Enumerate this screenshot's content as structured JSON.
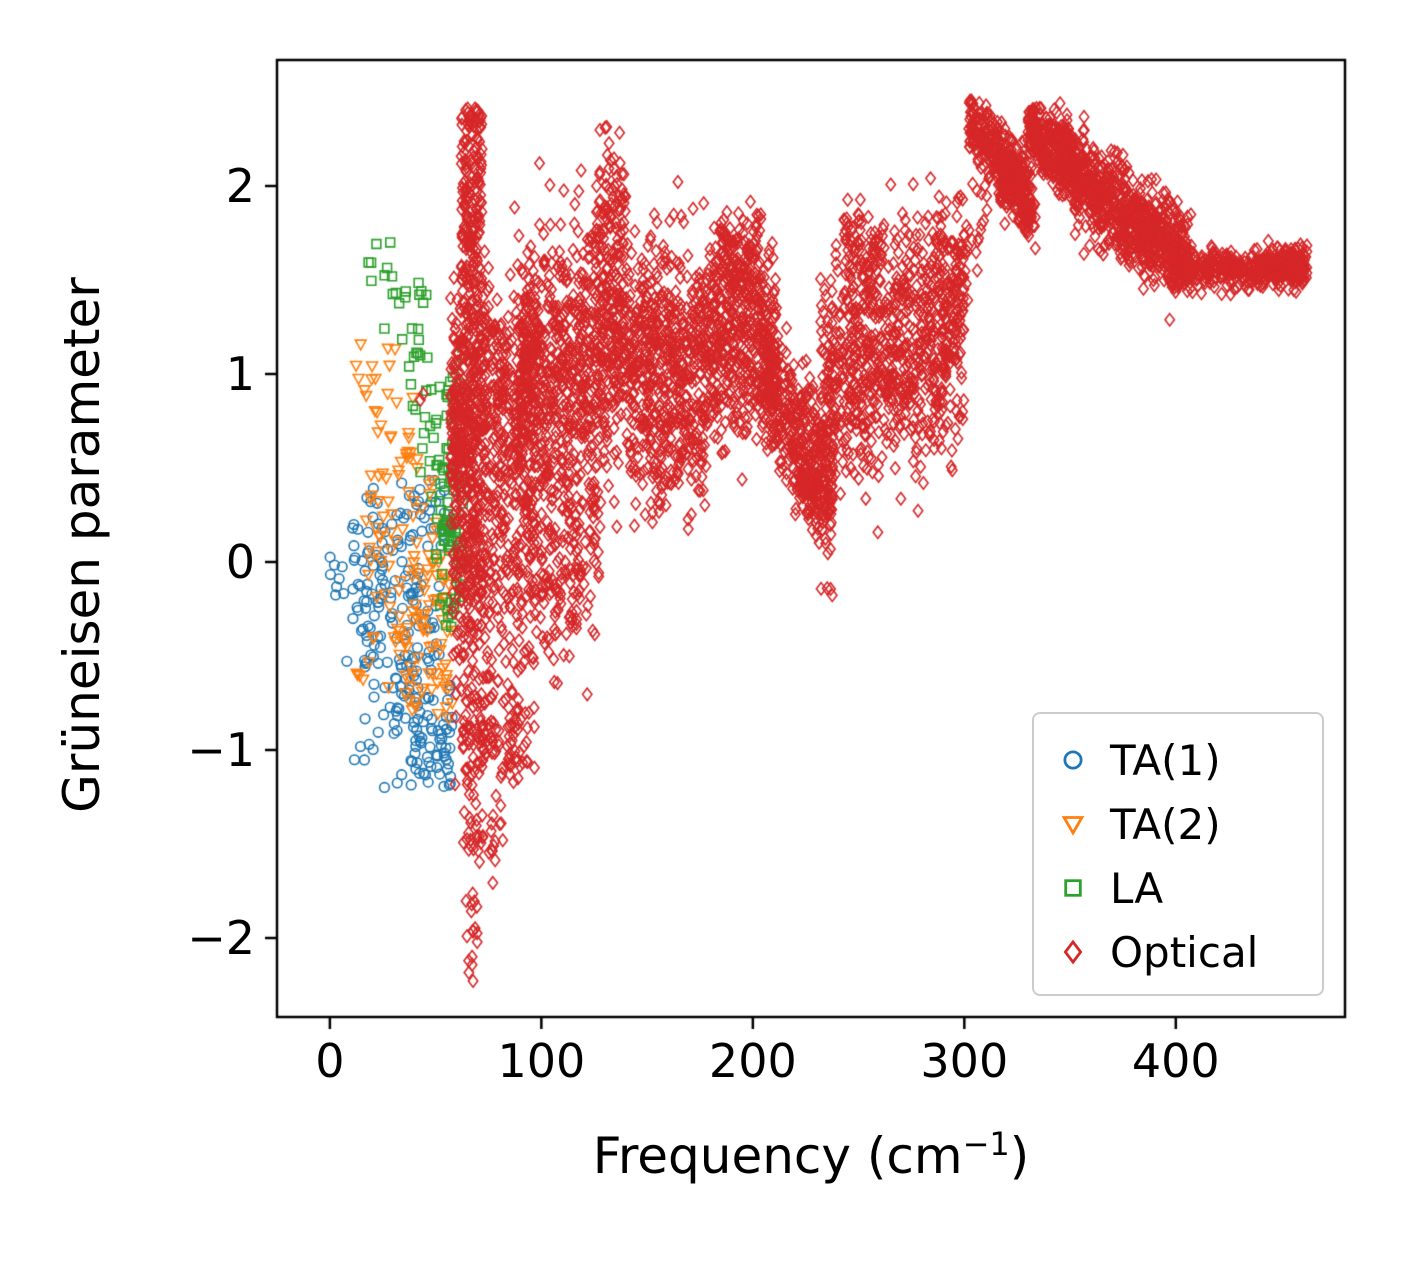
{
  "chart_data": {
    "type": "scatter",
    "title": "",
    "ylabel": "Grüneisen parameter",
    "xlabel_parts": {
      "pre": "Frequency (cm",
      "sup": "−1",
      "post": ")"
    },
    "xlim": [
      -25,
      480
    ],
    "ylim": [
      -2.42,
      2.67
    ],
    "grid": false,
    "legend_position": "lower right",
    "x_ticks": {
      "values": [
        0,
        100,
        200,
        300,
        400
      ],
      "labels": [
        "0",
        "100",
        "200",
        "300",
        "400"
      ]
    },
    "y_ticks": {
      "values": [
        -2,
        -1,
        0,
        1,
        2
      ],
      "labels": [
        "−2",
        "−1",
        "0",
        "1",
        "2"
      ]
    },
    "series": [
      {
        "name": "TA(1)",
        "marker": "circle",
        "color": "#1f77b4",
        "yclip": [
          -1.2,
          0.45
        ],
        "clusters": [
          {
            "x": [
              -2,
              12
            ],
            "y": 0.0,
            "sd": 0.1,
            "n": 10
          },
          {
            "x": [
              8,
              30
            ],
            "y": -0.05,
            "sd": 0.28,
            "n": 40
          },
          {
            "x": [
              15,
              42
            ],
            "y": -0.35,
            "sd": 0.33,
            "n": 65
          },
          {
            "x": [
              28,
              52
            ],
            "y": -0.55,
            "sd": 0.35,
            "n": 65
          },
          {
            "x": [
              38,
              58
            ],
            "y": -0.98,
            "sd": 0.15,
            "n": 55
          },
          {
            "x": [
              30,
              55
            ],
            "y": 0.22,
            "sd": 0.14,
            "n": 35
          },
          {
            "x": [
              8,
              22
            ],
            "y": -0.95,
            "sd": 0.06,
            "n": 5
          }
        ]
      },
      {
        "name": "TA(2)",
        "marker": "triangle-down",
        "color": "#ff7f0e",
        "yclip": [
          -0.85,
          1.18
        ],
        "clusters": [
          {
            "x": [
              12,
              32
            ],
            "y": 0.95,
            "sd": 0.18,
            "n": 14
          },
          {
            "x": [
              16,
              42
            ],
            "y": 0.5,
            "sd": 0.18,
            "n": 22
          },
          {
            "x": [
              18,
              52
            ],
            "y": 0.02,
            "sd": 0.3,
            "n": 55
          },
          {
            "x": [
              30,
              58
            ],
            "y": -0.3,
            "sd": 0.25,
            "n": 50
          },
          {
            "x": [
              34,
              58
            ],
            "y": -0.62,
            "sd": 0.12,
            "n": 18
          },
          {
            "x": [
              12,
              20
            ],
            "y": -0.62,
            "sd": 0.06,
            "n": 4
          }
        ]
      },
      {
        "name": "LA",
        "marker": "square",
        "color": "#2ca02c",
        "yclip": [
          -0.35,
          1.7
        ],
        "clusters": [
          {
            "x": [
              15,
              30
            ],
            "y": 1.58,
            "sd": 0.1,
            "n": 7
          },
          {
            "x": [
              24,
              46
            ],
            "y": 1.38,
            "sd": 0.12,
            "n": 13
          },
          {
            "x": [
              34,
              52
            ],
            "y": 1.0,
            "sd": 0.18,
            "n": 14
          },
          {
            "x": [
              42,
              58
            ],
            "y": 0.62,
            "sd": 0.18,
            "n": 18
          },
          {
            "x": [
              50,
              63
            ],
            "y": 0.2,
            "sd": 0.22,
            "n": 55
          },
          {
            "x": [
              52,
              62
            ],
            "y": -0.22,
            "sd": 0.08,
            "n": 12
          },
          {
            "x": [
              55,
              63
            ],
            "y": 0.85,
            "sd": 0.2,
            "n": 20
          }
        ]
      },
      {
        "name": "Optical",
        "marker": "diamond",
        "color": "#d62728",
        "yclip": [
          -2.25,
          2.46
        ],
        "clusters": [
          {
            "x": [
              62,
              72
            ],
            "y": 1.9,
            "sd": 0.35,
            "n": 180,
            "ymax": 2.42
          },
          {
            "x": [
              62,
              74
            ],
            "y": 0.3,
            "sd": 0.6,
            "n": 140
          },
          {
            "x": [
              63,
              73
            ],
            "y": -1.25,
            "sd": 0.25,
            "n": 45
          },
          {
            "x": [
              64,
              70
            ],
            "y": -1.8,
            "sd": 0.12,
            "n": 12
          },
          {
            "x": [
              65,
              69
            ],
            "y": -2.12,
            "sd": 0.06,
            "n": 5
          },
          {
            "x": [
              72,
              82
            ],
            "y": -1.45,
            "sd": 0.12,
            "n": 18
          },
          {
            "x": [
              40,
              46
            ],
            "y": 0.85,
            "sd": 0.05,
            "n": 2
          },
          {
            "x": [
              57,
              98
            ],
            "y": 0.85,
            "sd": 0.35,
            "n": 480
          },
          {
            "x": [
              58,
              98
            ],
            "y": -0.15,
            "sd": 0.42,
            "n": 240
          },
          {
            "x": [
              70,
              94
            ],
            "y": -0.95,
            "sd": 0.13,
            "n": 70
          },
          {
            "x": [
              57,
              70
            ],
            "y": 0.6,
            "sd": 0.45,
            "n": 160
          },
          {
            "x": [
              88,
              136
            ],
            "y": 1.05,
            "sd": 0.35,
            "n": 650
          },
          {
            "x": [
              94,
              128
            ],
            "y": 0.15,
            "sd": 0.3,
            "n": 180
          },
          {
            "x": [
              100,
              118
            ],
            "y": -0.32,
            "sd": 0.12,
            "n": 35
          },
          {
            "x": [
              126,
              140
            ],
            "y": 1.9,
            "sd": 0.28,
            "n": 90,
            "ymax": 2.32
          },
          {
            "x": [
              134,
              212
            ],
            "y": 1.15,
            "sd": 0.28,
            "n": 950
          },
          {
            "x": [
              140,
              178
            ],
            "y": 0.6,
            "sd": 0.16,
            "n": 150
          },
          {
            "x": [
              184,
              204
            ],
            "y": 1.6,
            "sd": 0.14,
            "n": 110,
            "ymax": 1.88
          },
          {
            "x": [
              204,
              238
            ],
            "y": 1.0,
            "y2": 0.38,
            "sd": 0.2,
            "n": 380
          },
          {
            "x": [
              220,
              238
            ],
            "y": 0.38,
            "sd": 0.1,
            "n": 80
          },
          {
            "x": [
              232,
              300
            ],
            "y": 0.95,
            "y2": 1.25,
            "sd": 0.3,
            "n": 800
          },
          {
            "x": [
              243,
              263
            ],
            "y": 1.62,
            "sd": 0.12,
            "n": 80
          },
          {
            "x": [
              284,
              302
            ],
            "y": 1.6,
            "sd": 0.15,
            "n": 60,
            "ymax": 1.95
          },
          {
            "x": [
              296,
              312
            ],
            "y": 1.85,
            "sd": 0.12,
            "n": 20
          },
          {
            "x": [
              302,
              332
            ],
            "y": 2.32,
            "y2": 1.95,
            "sd": 0.09,
            "n": 330,
            "ymax": 2.46
          },
          {
            "x": [
              316,
              334
            ],
            "y": 2.0,
            "y2": 1.82,
            "sd": 0.06,
            "n": 90
          },
          {
            "x": [
              330,
              352
            ],
            "y": 2.32,
            "y2": 2.1,
            "sd": 0.09,
            "n": 280,
            "ymax": 2.42
          },
          {
            "x": [
              344,
              408
            ],
            "y": 2.18,
            "y2": 1.62,
            "sd": 0.1,
            "n": 550
          },
          {
            "x": [
              352,
              402
            ],
            "y": 1.95,
            "y2": 1.55,
            "sd": 0.09,
            "n": 280
          },
          {
            "x": [
              398,
              462
            ],
            "y": 1.56,
            "sd": 0.05,
            "n": 380
          },
          {
            "x": [
              442,
              462
            ],
            "y": 1.58,
            "sd": 0.04,
            "n": 90
          }
        ]
      }
    ]
  },
  "legend": {
    "entries": [
      "TA(1)",
      "TA(2)",
      "LA",
      "Optical"
    ]
  }
}
